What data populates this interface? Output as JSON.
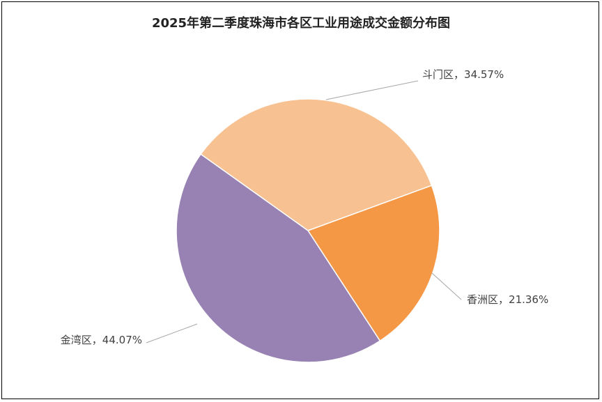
{
  "chart_data": {
    "type": "pie",
    "title": "2025年第二季度珠海市各区工业用途成交金额分布图",
    "categories": [
      "斗门区",
      "香洲区",
      "金湾区"
    ],
    "values": [
      34.57,
      21.36,
      44.07
    ],
    "value_labels": [
      "34.57%",
      "21.36%",
      "44.07%"
    ],
    "label_separator": "，",
    "colors": [
      "#F8C191",
      "#F59846",
      "#9882B3"
    ]
  }
}
